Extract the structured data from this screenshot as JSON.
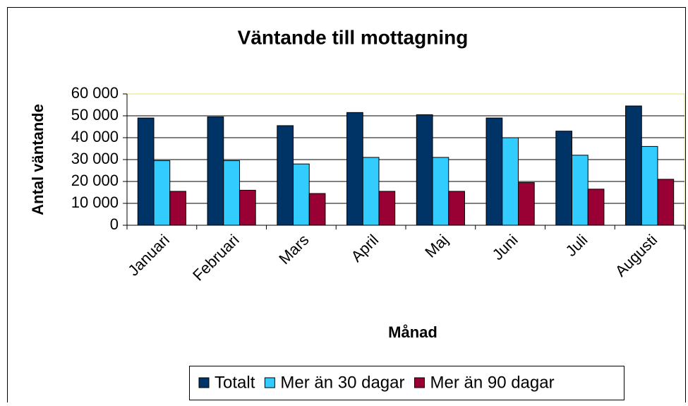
{
  "chart_data": {
    "type": "bar",
    "title": "Väntande till mottagning",
    "x_label": "Månad",
    "y_label": "Antal väntande",
    "categories": [
      "Januari",
      "Februari",
      "Mars",
      "April",
      "Maj",
      "Juni",
      "Juli",
      "Augusti"
    ],
    "series": [
      {
        "name": "Totalt",
        "color": "#003366",
        "values": [
          49000,
          49500,
          45500,
          51500,
          50500,
          49000,
          43000,
          54500
        ]
      },
      {
        "name": "Mer än 30 dagar",
        "color": "#33ccff",
        "values": [
          29500,
          29500,
          28000,
          31000,
          31000,
          40000,
          32000,
          36000
        ]
      },
      {
        "name": "Mer än 90 dagar",
        "color": "#990033",
        "values": [
          15500,
          16000,
          14500,
          15500,
          15500,
          19500,
          16500,
          21000
        ]
      }
    ],
    "ylim": [
      0,
      60000
    ],
    "yticks": [
      0,
      {
        "value": 10000,
        "label": "10 000"
      },
      {
        "value": 20000,
        "label": "20 000"
      },
      {
        "value": 30000,
        "label": "30 000"
      },
      {
        "value": 40000,
        "label": "40 000"
      },
      {
        "value": 50000,
        "label": "50 000"
      },
      {
        "value": 60000,
        "label": "60 000"
      }
    ],
    "grid": true,
    "legend": "bottom"
  }
}
